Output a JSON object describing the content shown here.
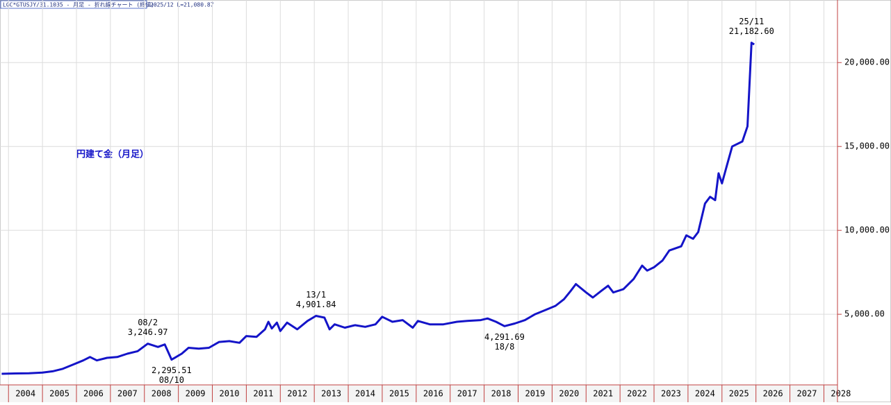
{
  "chart_data": {
    "type": "line",
    "header": "LGC*GTUSJY/31.1035 - 月足 - 折れ線チャート (終値)",
    "header_info": "2025/12 L=21,080.87",
    "annotation": "円建て金（月足）",
    "xlim": [
      2003.75,
      2028.4
    ],
    "xticks": [
      2004,
      2005,
      2006,
      2007,
      2008,
      2009,
      2010,
      2011,
      2012,
      2013,
      2014,
      2015,
      2016,
      2017,
      2018,
      2019,
      2020,
      2021,
      2022,
      2023,
      2024,
      2025,
      2026,
      2027,
      2028
    ],
    "ylim": [
      790,
      23730
    ],
    "yticks": [
      {
        "value": 5000,
        "label": "5,000.00"
      },
      {
        "value": 10000,
        "label": "10,000.00"
      },
      {
        "value": 15000,
        "label": "15,000.00"
      },
      {
        "value": 20000,
        "label": "20,000.00"
      }
    ],
    "grid": true,
    "series": [
      {
        "color": "#1414c8",
        "x": [
          2003.8,
          2004.2,
          2004.6,
          2005.0,
          2005.3,
          2005.6,
          2005.9,
          2006.2,
          2006.4,
          2006.6,
          2006.9,
          2007.2,
          2007.5,
          2007.8,
          2008.1,
          2008.4,
          2008.6,
          2008.8,
          2009.1,
          2009.3,
          2009.6,
          2009.9,
          2010.2,
          2010.5,
          2010.8,
          2011.0,
          2011.3,
          2011.55,
          2011.65,
          2011.75,
          2011.9,
          2012.0,
          2012.2,
          2012.5,
          2012.8,
          2013.05,
          2013.3,
          2013.45,
          2013.6,
          2013.9,
          2014.2,
          2014.5,
          2014.8,
          2015.0,
          2015.3,
          2015.6,
          2015.9,
          2016.05,
          2016.4,
          2016.8,
          2017.2,
          2017.5,
          2017.9,
          2018.1,
          2018.35,
          2018.6,
          2018.9,
          2019.2,
          2019.5,
          2019.8,
          2020.1,
          2020.35,
          2020.55,
          2020.7,
          2021.0,
          2021.2,
          2021.45,
          2021.65,
          2021.8,
          2022.1,
          2022.4,
          2022.65,
          2022.8,
          2023.0,
          2023.25,
          2023.45,
          2023.8,
          2023.95,
          2024.15,
          2024.3,
          2024.5,
          2024.65,
          2024.8,
          2024.9,
          2025.0,
          2025.15,
          2025.3,
          2025.6,
          2025.75,
          2025.87,
          2025.95
        ],
        "values": [
          1450,
          1470,
          1480,
          1520,
          1600,
          1750,
          2000,
          2250,
          2450,
          2250,
          2400,
          2450,
          2650,
          2800,
          3246.97,
          3050,
          3200,
          2295.51,
          2650,
          3000,
          2950,
          3000,
          3350,
          3400,
          3300,
          3700,
          3650,
          4100,
          4550,
          4150,
          4500,
          4000,
          4500,
          4100,
          4600,
          4901.84,
          4800,
          4100,
          4400,
          4200,
          4350,
          4250,
          4400,
          4850,
          4550,
          4650,
          4200,
          4600,
          4400,
          4400,
          4550,
          4600,
          4650,
          4750,
          4550,
          4291.69,
          4450,
          4650,
          5000,
          5250,
          5500,
          5900,
          6400,
          6800,
          6300,
          6000,
          6400,
          6700,
          6300,
          6500,
          7100,
          7900,
          7600,
          7800,
          8200,
          8800,
          9050,
          9700,
          9500,
          9900,
          11600,
          12000,
          11800,
          13400,
          12800,
          13900,
          15000,
          15300,
          16200,
          21182.6,
          21080.87
        ],
        "value_labels": [
          null,
          null,
          null,
          null,
          null,
          null,
          null,
          null,
          null,
          null,
          null,
          null,
          null,
          null,
          "3,246.97",
          null,
          null,
          "2,295.51",
          null,
          null,
          null,
          null,
          null,
          null,
          null,
          null,
          null,
          null,
          null,
          null,
          null,
          null,
          null,
          null,
          null,
          "4,901.84",
          null,
          null,
          null,
          null,
          null,
          null,
          null,
          null,
          null,
          null,
          null,
          null,
          null,
          null,
          null,
          null,
          null,
          null,
          null,
          "4,291.69",
          null,
          null,
          null,
          null,
          null,
          null,
          null,
          null,
          null,
          null,
          null,
          null,
          null,
          null,
          null,
          null,
          null,
          null,
          null,
          null,
          null,
          null,
          null,
          null,
          null,
          null,
          null,
          null,
          null,
          null,
          null,
          null,
          null,
          "21,182.60",
          null
        ],
        "date_labels": [
          null,
          null,
          null,
          null,
          null,
          null,
          null,
          null,
          null,
          null,
          null,
          null,
          null,
          null,
          "08/2",
          null,
          null,
          "08/10",
          null,
          null,
          null,
          null,
          null,
          null,
          null,
          null,
          null,
          null,
          null,
          null,
          null,
          null,
          null,
          null,
          null,
          "13/1",
          null,
          null,
          null,
          null,
          null,
          null,
          null,
          null,
          null,
          null,
          null,
          null,
          null,
          null,
          null,
          null,
          null,
          null,
          null,
          "18/8",
          null,
          null,
          null,
          null,
          null,
          null,
          null,
          null,
          null,
          null,
          null,
          null,
          null,
          null,
          null,
          null,
          null,
          null,
          null,
          null,
          null,
          null,
          null,
          null,
          null,
          null,
          null,
          null,
          null,
          null,
          null,
          null,
          null,
          "25/11",
          null
        ]
      }
    ]
  }
}
